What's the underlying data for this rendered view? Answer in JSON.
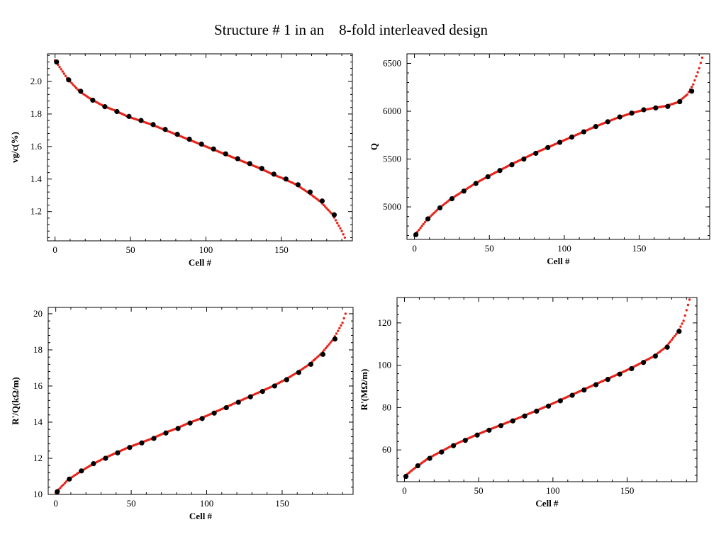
{
  "title": "Structure # 1 in an    8-fold interleaved design",
  "colors": {
    "curve": "#e8231a",
    "marker": "#000000",
    "frame": "#000000"
  },
  "chart_data": [
    {
      "type": "scatter",
      "id": "vg",
      "xlabel": "Cell #",
      "ylabel": "vg/c(%)",
      "xlim": [
        -5,
        197
      ],
      "ylim": [
        1.02,
        2.17
      ],
      "xticks": [
        0,
        50,
        100,
        150
      ],
      "yticks": [
        1.2,
        1.4,
        1.6,
        1.8,
        2.0
      ],
      "ytick_labels": [
        "1.2",
        "1.4",
        "1.6",
        "1.8",
        "2.0"
      ],
      "curve_x": [
        0,
        8,
        16,
        24,
        32,
        40,
        48,
        56,
        64,
        72,
        80,
        88,
        96,
        104,
        112,
        120,
        128,
        136,
        144,
        152,
        160,
        168,
        176,
        184,
        190,
        192
      ],
      "curve_y": [
        2.13,
        2.02,
        1.94,
        1.89,
        1.85,
        1.82,
        1.785,
        1.76,
        1.735,
        1.705,
        1.675,
        1.645,
        1.615,
        1.585,
        1.555,
        1.525,
        1.495,
        1.465,
        1.43,
        1.4,
        1.365,
        1.315,
        1.26,
        1.18,
        1.08,
        1.04
      ],
      "marker_x": [
        1,
        9,
        17,
        25,
        33,
        41,
        49,
        57,
        65,
        73,
        81,
        89,
        97,
        105,
        113,
        121,
        129,
        137,
        145,
        153,
        161,
        169,
        177,
        185
      ],
      "marker_y": [
        2.12,
        2.01,
        1.94,
        1.885,
        1.845,
        1.815,
        1.785,
        1.76,
        1.735,
        1.705,
        1.675,
        1.645,
        1.615,
        1.585,
        1.555,
        1.525,
        1.495,
        1.465,
        1.43,
        1.4,
        1.365,
        1.32,
        1.265,
        1.18
      ]
    },
    {
      "type": "scatter",
      "id": "q",
      "xlabel": "Cell #",
      "ylabel": "Q",
      "xlim": [
        -5,
        197
      ],
      "ylim": [
        4660,
        6600
      ],
      "xticks": [
        0,
        50,
        100,
        150
      ],
      "yticks": [
        5000,
        5500,
        6000,
        6500
      ],
      "ytick_labels": [
        "5000",
        "5500",
        "6000",
        "6500"
      ],
      "curve_x": [
        0,
        8,
        16,
        24,
        32,
        40,
        48,
        56,
        64,
        72,
        80,
        88,
        96,
        104,
        112,
        120,
        128,
        136,
        144,
        152,
        160,
        168,
        176,
        182,
        186,
        190,
        192
      ],
      "curve_y": [
        4700,
        4860,
        4980,
        5080,
        5160,
        5240,
        5310,
        5375,
        5440,
        5500,
        5560,
        5615,
        5670,
        5725,
        5780,
        5835,
        5885,
        5935,
        5975,
        6010,
        6035,
        6055,
        6095,
        6175,
        6280,
        6450,
        6560
      ],
      "marker_x": [
        1,
        9,
        17,
        25,
        33,
        41,
        49,
        57,
        65,
        73,
        81,
        89,
        97,
        105,
        113,
        121,
        129,
        137,
        145,
        153,
        161,
        169,
        177,
        185
      ],
      "marker_y": [
        4710,
        4875,
        4990,
        5085,
        5165,
        5245,
        5315,
        5380,
        5440,
        5500,
        5560,
        5620,
        5675,
        5730,
        5785,
        5840,
        5890,
        5940,
        5980,
        6015,
        6035,
        6050,
        6100,
        6210
      ]
    },
    {
      "type": "scatter",
      "id": "rq",
      "xlabel": "Cell #",
      "ylabel": "R'/Q(kΩ/m)",
      "xlim": [
        -5,
        197
      ],
      "ylim": [
        10.0,
        20.35
      ],
      "xticks": [
        0,
        50,
        100,
        150
      ],
      "yticks": [
        10,
        12,
        14,
        16,
        18,
        20
      ],
      "ytick_labels": [
        "10",
        "12",
        "14",
        "16",
        "18",
        "20"
      ],
      "curve_x": [
        0,
        8,
        16,
        24,
        32,
        40,
        48,
        56,
        64,
        72,
        80,
        88,
        96,
        104,
        112,
        120,
        128,
        136,
        144,
        152,
        160,
        168,
        176,
        184,
        190,
        192
      ],
      "curve_y": [
        10.1,
        10.8,
        11.25,
        11.65,
        12.0,
        12.3,
        12.6,
        12.85,
        13.1,
        13.4,
        13.65,
        13.95,
        14.2,
        14.5,
        14.8,
        15.1,
        15.4,
        15.7,
        16.0,
        16.35,
        16.75,
        17.2,
        17.8,
        18.6,
        19.5,
        20.0
      ],
      "marker_x": [
        1,
        9,
        17,
        25,
        33,
        41,
        49,
        57,
        65,
        73,
        81,
        89,
        97,
        105,
        113,
        121,
        129,
        137,
        145,
        153,
        161,
        169,
        177,
        185
      ],
      "marker_y": [
        10.15,
        10.85,
        11.3,
        11.7,
        12.0,
        12.3,
        12.6,
        12.85,
        13.1,
        13.4,
        13.65,
        13.95,
        14.2,
        14.5,
        14.8,
        15.1,
        15.4,
        15.7,
        16.0,
        16.35,
        16.75,
        17.2,
        17.75,
        18.6
      ]
    },
    {
      "type": "scatter",
      "id": "r",
      "xlabel": "Cell #",
      "ylabel": "R'(MΩ/m)",
      "xlim": [
        -5,
        197
      ],
      "ylim": [
        45,
        132
      ],
      "xticks": [
        0,
        50,
        100,
        150
      ],
      "yticks": [
        60,
        80,
        100,
        120
      ],
      "ytick_labels": [
        "60",
        "80",
        "100",
        "120"
      ],
      "curve_x": [
        0,
        8,
        16,
        24,
        32,
        40,
        48,
        56,
        64,
        72,
        80,
        88,
        96,
        104,
        112,
        120,
        128,
        136,
        144,
        152,
        160,
        168,
        176,
        184,
        188,
        192
      ],
      "curve_y": [
        47.5,
        52,
        56,
        59,
        62,
        64.5,
        67,
        69.3,
        71.5,
        73.7,
        76,
        78.3,
        80.7,
        83.2,
        85.8,
        88.3,
        90.8,
        93.3,
        95.8,
        98.4,
        101.3,
        104.3,
        108.5,
        115.5,
        121,
        131
      ],
      "marker_x": [
        1,
        9,
        17,
        25,
        33,
        41,
        49,
        57,
        65,
        73,
        81,
        89,
        97,
        105,
        113,
        121,
        129,
        137,
        145,
        153,
        161,
        169,
        177,
        185
      ],
      "marker_y": [
        47.5,
        52.5,
        56,
        59,
        62,
        64.5,
        67,
        69.3,
        71.5,
        73.7,
        76,
        78.3,
        80.7,
        83.2,
        85.8,
        88.3,
        90.8,
        93.3,
        95.8,
        98.4,
        101.3,
        104.3,
        108.5,
        116
      ]
    }
  ]
}
